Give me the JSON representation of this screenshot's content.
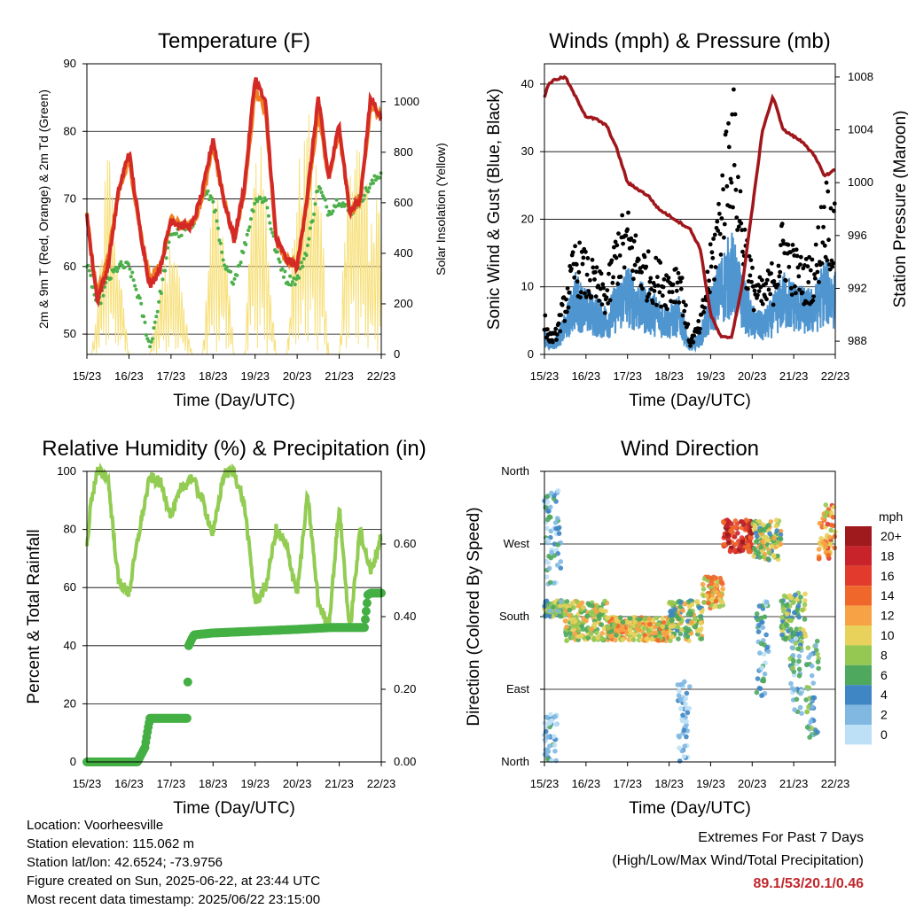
{
  "x_tick_labels": [
    "15/23",
    "16/23",
    "17/23",
    "18/23",
    "19/23",
    "20/23",
    "21/23",
    "22/23"
  ],
  "x_axis_label": "Time (Day/UTC)",
  "colors": {
    "temp_2m": "#d42a26",
    "temp_9m": "#f07f22",
    "dewpoint": "#4cb04a",
    "solar": "#f7e07a",
    "gust": "#000000",
    "wind": "#4f95d0",
    "pressure": "#a0161b",
    "rh": "#92cc52",
    "precip": "#44b044",
    "extremes": "#c0282d"
  },
  "chart_data": [
    {
      "type": "line",
      "title": "Temperature (F)",
      "ylabel": "2m & 9m T (Red, Orange) & 2m Td (Green)",
      "ylabel_right": "Solar Insolation (Yellow)",
      "ylim": [
        47,
        90
      ],
      "yticks": [
        "50",
        "60",
        "70",
        "80",
        "90"
      ],
      "ylim_right": [
        0,
        1150
      ],
      "yticks_right": [
        "0",
        "200",
        "400",
        "600",
        "800",
        "1000"
      ],
      "x": [
        0,
        0.1,
        0.25,
        0.5,
        0.75,
        1,
        1.25,
        1.5,
        1.75,
        2,
        2.25,
        2.5,
        2.75,
        3,
        3.25,
        3.5,
        3.75,
        4,
        4.25,
        4.5,
        4.75,
        5,
        5.25,
        5.5,
        5.75,
        6,
        6.25,
        6.5,
        6.75,
        7
      ],
      "series": [
        {
          "key": "t2m",
          "values": [
            68,
            62,
            55,
            60,
            71,
            77,
            66,
            57,
            60,
            67,
            66,
            66,
            71,
            79,
            70,
            64,
            72,
            88,
            84,
            64,
            61,
            60,
            71,
            85,
            73,
            81,
            68,
            70,
            85,
            82
          ]
        },
        {
          "key": "t9m",
          "values": [
            68,
            62,
            56,
            61,
            71,
            76,
            66,
            58,
            60,
            67,
            66,
            66,
            70,
            78,
            70,
            64,
            71,
            86,
            83,
            64,
            61,
            60,
            70,
            83,
            73,
            80,
            68,
            70,
            84,
            82
          ]
        },
        {
          "key": "td",
          "values": [
            60,
            58,
            54,
            58,
            60,
            60,
            55,
            48,
            56,
            65,
            65,
            66,
            71,
            70,
            60,
            58,
            63,
            70,
            70,
            62,
            58,
            58,
            63,
            72,
            68,
            70,
            68,
            70,
            72,
            74
          ]
        },
        {
          "key": "solar",
          "values": [
            0,
            0,
            200,
            900,
            500,
            0,
            0,
            0,
            300,
            500,
            300,
            0,
            0,
            700,
            700,
            0,
            0,
            1000,
            700,
            0,
            0,
            800,
            1000,
            900,
            0,
            0,
            1000,
            900,
            600,
            700
          ]
        }
      ]
    },
    {
      "type": "line",
      "title": "Winds (mph) & Pressure (mb)",
      "ylabel": "Sonic Wind & Gust (Blue, Black)",
      "ylabel_right": "Station Pressure (Maroon)",
      "ylim": [
        0,
        43
      ],
      "yticks": [
        "0",
        "10",
        "20",
        "30",
        "40"
      ],
      "ylim_right": [
        987,
        1009
      ],
      "yticks_right": [
        "988",
        "992",
        "996",
        "1000",
        "1004",
        "1008"
      ],
      "x": [
        0,
        0.1,
        0.25,
        0.5,
        0.75,
        1,
        1.25,
        1.5,
        1.75,
        2,
        2.25,
        2.5,
        2.75,
        3,
        3.25,
        3.5,
        3.75,
        4,
        4.25,
        4.5,
        4.75,
        5,
        5.25,
        5.5,
        5.75,
        6,
        6.25,
        6.5,
        6.75,
        7
      ],
      "series": [
        {
          "key": "wind",
          "values": [
            3,
            2,
            2,
            5,
            10,
            8,
            7,
            6,
            9,
            11,
            9,
            8,
            7,
            6,
            7,
            1,
            3,
            8,
            12,
            15,
            10,
            6,
            5,
            7,
            10,
            9,
            8,
            8,
            12,
            10
          ]
        },
        {
          "key": "gust",
          "values": [
            6,
            3,
            3,
            9,
            16,
            14,
            12,
            10,
            18,
            20,
            16,
            14,
            13,
            12,
            14,
            2,
            5,
            15,
            25,
            40,
            22,
            12,
            10,
            13,
            19,
            15,
            13,
            14,
            25,
            20
          ]
        },
        {
          "key": "pressure",
          "values": [
            1006.5,
            1007.5,
            1007.8,
            1008,
            1006.5,
            1005,
            1004.8,
            1004.3,
            1002.5,
            1000,
            999.5,
            999,
            998,
            997.5,
            997,
            996.5,
            995,
            990,
            988.3,
            988.3,
            992,
            998,
            1004,
            1006.5,
            1004,
            1003.5,
            1003,
            1002,
            1000.5,
            1001
          ]
        }
      ]
    },
    {
      "type": "line",
      "title": "Relative Humidity (%) & Precipitation (in)",
      "ylabel": "Percent & Total Rainfall",
      "ylim": [
        0,
        100
      ],
      "yticks": [
        "0",
        "20",
        "40",
        "60",
        "80",
        "100"
      ],
      "ylim_right": [
        0,
        0.8
      ],
      "yticks_right": [
        "0.00",
        "0.20",
        "0.40",
        "0.60"
      ],
      "x": [
        0,
        0.1,
        0.25,
        0.5,
        0.75,
        1,
        1.25,
        1.5,
        1.75,
        2,
        2.25,
        2.5,
        2.75,
        3,
        3.25,
        3.5,
        3.75,
        4,
        4.25,
        4.5,
        4.75,
        5,
        5.25,
        5.5,
        5.75,
        6,
        6.25,
        6.5,
        6.75,
        7
      ],
      "series": [
        {
          "key": "rh",
          "values": [
            74,
            90,
            100,
            98,
            62,
            58,
            80,
            98,
            96,
            85,
            94,
            98,
            90,
            78,
            99,
            100,
            88,
            55,
            60,
            80,
            74,
            58,
            92,
            55,
            46,
            88,
            45,
            80,
            65,
            78
          ]
        },
        {
          "key": "precip",
          "x": [
            0,
            1.2,
            1.38,
            1.45,
            1.5,
            2.38,
            2.42,
            2.5,
            2.55,
            3,
            4,
            5,
            5.8,
            6.6,
            6.68,
            6.75,
            7
          ],
          "values": [
            0,
            0,
            0.04,
            0.09,
            0.12,
            0.12,
            0.32,
            0.34,
            0.35,
            0.355,
            0.36,
            0.365,
            0.37,
            0.37,
            0.46,
            0.465,
            0.465
          ]
        }
      ]
    },
    {
      "type": "scatter",
      "title": "Wind Direction",
      "ylabel": "Direction (Colored By Speed)",
      "yticks": [
        "North",
        "East",
        "South",
        "West",
        "North"
      ],
      "ylim": [
        0,
        360
      ],
      "legend_title": "mph",
      "legend_labels": [
        "20+",
        "18",
        "16",
        "14",
        "12",
        "10",
        "8",
        "6",
        "4",
        "2",
        "0"
      ],
      "legend_colors": [
        "#9e1a1d",
        "#c8232a",
        "#e23a2c",
        "#f0672b",
        "#f7a244",
        "#e8d25c",
        "#95c852",
        "#4ea85e",
        "#3f86c4",
        "#80b8e2",
        "#bde0f6"
      ],
      "clusters": [
        {
          "x0": 0,
          "x1": 0.5,
          "d0": 180,
          "d1": 200,
          "speed": 6
        },
        {
          "x0": 0.5,
          "x1": 1.5,
          "d0": 150,
          "d1": 200,
          "speed": 9
        },
        {
          "x0": 1.5,
          "x1": 3,
          "d0": 150,
          "d1": 180,
          "speed": 10
        },
        {
          "x0": 3,
          "x1": 3.8,
          "d0": 150,
          "d1": 200,
          "speed": 8
        },
        {
          "x0": 3.8,
          "x1": 4.3,
          "d0": 190,
          "d1": 230,
          "speed": 11
        },
        {
          "x0": 4.3,
          "x1": 5,
          "d0": 260,
          "d1": 300,
          "speed": 17
        },
        {
          "x0": 5,
          "x1": 5.7,
          "d0": 250,
          "d1": 300,
          "speed": 8
        },
        {
          "x0": 5.7,
          "x1": 6.3,
          "d0": 150,
          "d1": 210,
          "speed": 7
        },
        {
          "x0": 6.6,
          "x1": 7,
          "d0": 250,
          "d1": 320,
          "speed": 12
        },
        {
          "x0": 0,
          "x1": 0.3,
          "d0": 0,
          "d1": 60,
          "speed": 2
        },
        {
          "x0": 0,
          "x1": 0.4,
          "d0": 220,
          "d1": 340,
          "speed": 3
        },
        {
          "x0": 3.2,
          "x1": 3.5,
          "d0": 0,
          "d1": 100,
          "speed": 1
        },
        {
          "x0": 5.1,
          "x1": 5.4,
          "d0": 80,
          "d1": 200,
          "speed": 3
        },
        {
          "x0": 5.9,
          "x1": 6.2,
          "d0": 60,
          "d1": 160,
          "speed": 4
        },
        {
          "x0": 6.3,
          "x1": 6.6,
          "d0": 30,
          "d1": 150,
          "speed": 5
        }
      ]
    }
  ],
  "station": {
    "location": "Location: Voorheesville",
    "elevation": "Station elevation: 115.062 m",
    "latlon": "Station lat/lon: 42.6524; -73.9756",
    "created": "Figure created on Sun, 2025-06-22, at 23:44 UTC",
    "latest": "Most recent data timestamp: 2025/06/22 23:15:00"
  },
  "extremes": {
    "title": "Extremes For Past 7 Days",
    "subtitle": "(High/Low/Max Wind/Total Precipitation)",
    "values": "89.1/53/20.1/0.46"
  }
}
